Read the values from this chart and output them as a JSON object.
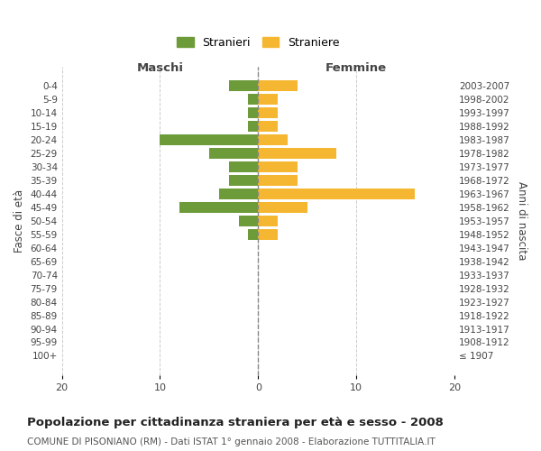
{
  "age_groups": [
    "100+",
    "95-99",
    "90-94",
    "85-89",
    "80-84",
    "75-79",
    "70-74",
    "65-69",
    "60-64",
    "55-59",
    "50-54",
    "45-49",
    "40-44",
    "35-39",
    "30-34",
    "25-29",
    "20-24",
    "15-19",
    "10-14",
    "5-9",
    "0-4"
  ],
  "birth_years": [
    "≤ 1907",
    "1908-1912",
    "1913-1917",
    "1918-1922",
    "1923-1927",
    "1928-1932",
    "1933-1937",
    "1938-1942",
    "1943-1947",
    "1948-1952",
    "1953-1957",
    "1958-1962",
    "1963-1967",
    "1968-1972",
    "1973-1977",
    "1978-1982",
    "1983-1987",
    "1988-1992",
    "1993-1997",
    "1998-2002",
    "2003-2007"
  ],
  "males": [
    0,
    0,
    0,
    0,
    0,
    0,
    0,
    0,
    0,
    1,
    2,
    8,
    4,
    3,
    3,
    5,
    10,
    1,
    1,
    1,
    3
  ],
  "females": [
    0,
    0,
    0,
    0,
    0,
    0,
    0,
    0,
    0,
    2,
    2,
    5,
    16,
    4,
    4,
    8,
    3,
    2,
    2,
    2,
    4
  ],
  "male_color": "#6d9b3a",
  "female_color": "#f5b731",
  "bg_color": "#ffffff",
  "grid_color": "#cccccc",
  "title": "Popolazione per cittadinanza straniera per età e sesso - 2008",
  "subtitle": "COMUNE DI PISONIANO (RM) - Dati ISTAT 1° gennaio 2008 - Elaborazione TUTTITALIA.IT",
  "xlabel_left": "Maschi",
  "xlabel_right": "Femmine",
  "ylabel_left": "Fasce di età",
  "ylabel_right": "Anni di nascita",
  "legend_male": "Stranieri",
  "legend_female": "Straniere",
  "xlim": 20,
  "bar_height": 0.8
}
